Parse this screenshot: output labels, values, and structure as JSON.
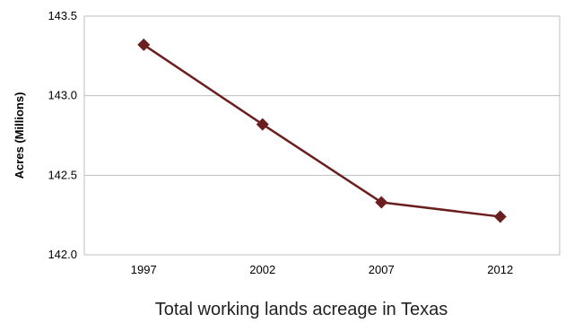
{
  "chart_data": {
    "type": "line",
    "caption": "Total working lands acreage in Texas",
    "ylabel": "Acres (Millions)",
    "xlabel": "",
    "categories": [
      "1997",
      "2002",
      "2007",
      "2012"
    ],
    "y_ticks": [
      "142.0",
      "142.5",
      "143.0",
      "143.5"
    ],
    "ylim": [
      142.0,
      143.5
    ],
    "grid": true,
    "legend": "none",
    "series": [
      {
        "values": [
          143.32,
          142.82,
          142.33,
          142.24
        ],
        "color": "#6B1F1F",
        "marker": "diamond"
      }
    ]
  }
}
